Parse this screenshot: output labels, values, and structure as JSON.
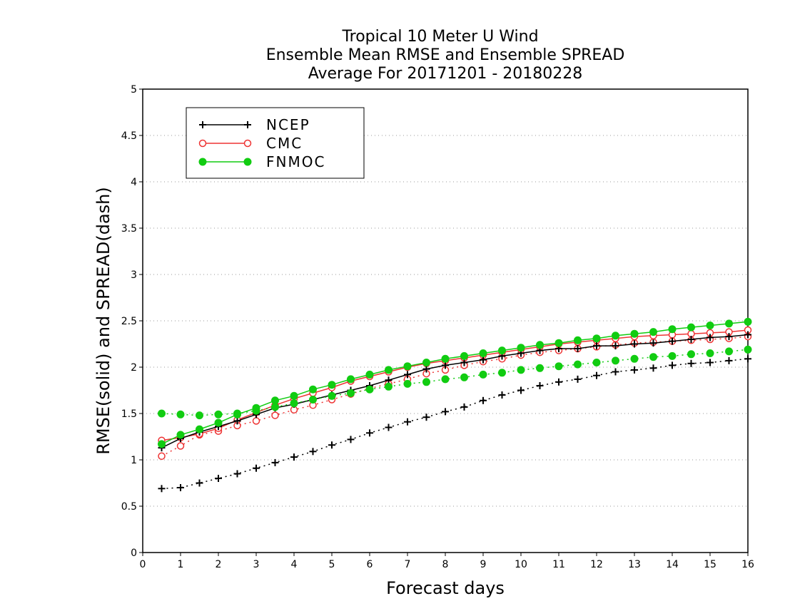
{
  "chart_data": {
    "type": "line",
    "title_lines": [
      "Tropical 10 Meter U Wind",
      "Ensemble Mean RMSE and Ensemble SPREAD",
      "Average For 20171201 - 20180228"
    ],
    "xlabel": "Forecast days",
    "ylabel": "RMSE(solid) and SPREAD(dash)",
    "xlim": [
      0,
      16
    ],
    "ylim": [
      0,
      5
    ],
    "x_ticks": [
      "0",
      "1",
      "2",
      "3",
      "4",
      "5",
      "6",
      "7",
      "8",
      "9",
      "10",
      "11",
      "12",
      "13",
      "14",
      "15",
      "16"
    ],
    "y_ticks": [
      "0",
      "0.5",
      "1",
      "1.5",
      "2",
      "2.5",
      "3",
      "3.5",
      "4",
      "4.5",
      "5"
    ],
    "grid": "horizontal-dotted",
    "legend_position": "top-left",
    "x": [
      0.5,
      1,
      1.5,
      2,
      2.5,
      3,
      3.5,
      4,
      4.5,
      5,
      5.5,
      6,
      6.5,
      7,
      7.5,
      8,
      8.5,
      9,
      9.5,
      10,
      10.5,
      11,
      11.5,
      12,
      12.5,
      13,
      13.5,
      14,
      14.5,
      15,
      15.5,
      16
    ],
    "series": [
      {
        "name": "NCEP",
        "color": "#000000",
        "marker": "plus",
        "rmse": [
          1.13,
          1.23,
          1.3,
          1.36,
          1.42,
          1.49,
          1.56,
          1.6,
          1.65,
          1.7,
          1.75,
          1.8,
          1.86,
          1.92,
          1.98,
          2.02,
          2.05,
          2.08,
          2.12,
          2.15,
          2.18,
          2.2,
          2.2,
          2.23,
          2.23,
          2.25,
          2.26,
          2.28,
          2.3,
          2.32,
          2.33,
          2.35
        ],
        "spread": [
          0.69,
          0.7,
          0.75,
          0.8,
          0.85,
          0.91,
          0.97,
          1.03,
          1.09,
          1.16,
          1.22,
          1.29,
          1.35,
          1.41,
          1.46,
          1.52,
          1.57,
          1.64,
          1.7,
          1.75,
          1.8,
          1.84,
          1.87,
          1.91,
          1.95,
          1.97,
          1.99,
          2.02,
          2.04,
          2.05,
          2.07,
          2.09
        ]
      },
      {
        "name": "CMC",
        "color": "#ee3333",
        "marker": "open-circle",
        "rmse": [
          1.21,
          1.24,
          1.28,
          1.34,
          1.43,
          1.51,
          1.59,
          1.66,
          1.72,
          1.78,
          1.85,
          1.9,
          1.95,
          2.0,
          2.04,
          2.07,
          2.1,
          2.13,
          2.16,
          2.19,
          2.22,
          2.25,
          2.27,
          2.29,
          2.31,
          2.33,
          2.34,
          2.35,
          2.36,
          2.37,
          2.38,
          2.4
        ],
        "spread": [
          1.04,
          1.15,
          1.27,
          1.31,
          1.37,
          1.42,
          1.48,
          1.54,
          1.59,
          1.65,
          1.71,
          1.77,
          1.82,
          1.87,
          1.93,
          1.97,
          2.02,
          2.06,
          2.09,
          2.13,
          2.16,
          2.18,
          2.2,
          2.22,
          2.24,
          2.26,
          2.27,
          2.28,
          2.29,
          2.3,
          2.31,
          2.33
        ]
      },
      {
        "name": "FNMOC",
        "color": "#11cc11",
        "marker": "filled-circle",
        "rmse": [
          1.17,
          1.27,
          1.33,
          1.4,
          1.49,
          1.56,
          1.64,
          1.69,
          1.76,
          1.81,
          1.87,
          1.92,
          1.97,
          2.01,
          2.05,
          2.09,
          2.12,
          2.15,
          2.18,
          2.21,
          2.24,
          2.26,
          2.29,
          2.31,
          2.34,
          2.36,
          2.38,
          2.41,
          2.43,
          2.45,
          2.47,
          2.49
        ],
        "spread": [
          1.5,
          1.49,
          1.48,
          1.49,
          1.5,
          1.53,
          1.57,
          1.61,
          1.65,
          1.69,
          1.72,
          1.76,
          1.79,
          1.82,
          1.84,
          1.87,
          1.89,
          1.92,
          1.94,
          1.97,
          1.99,
          2.01,
          2.03,
          2.05,
          2.07,
          2.09,
          2.11,
          2.12,
          2.14,
          2.15,
          2.17,
          2.19
        ]
      }
    ]
  }
}
